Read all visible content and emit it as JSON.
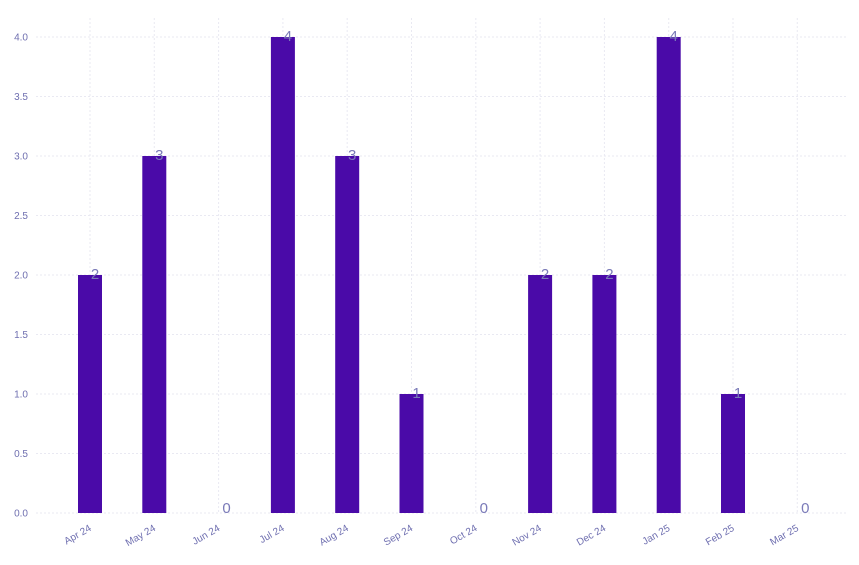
{
  "chart_data": {
    "type": "bar",
    "categories": [
      "Apr 24",
      "May 24",
      "Jun 24",
      "Jul 24",
      "Aug 24",
      "Sep 24",
      "Oct 24",
      "Nov 24",
      "Dec 24",
      "Jan 25",
      "Feb 25",
      "Mar 25"
    ],
    "values": [
      2,
      3,
      0,
      4,
      3,
      1,
      0,
      2,
      2,
      4,
      1,
      0
    ],
    "title": "",
    "xlabel": "",
    "ylabel": "",
    "ylim": [
      0,
      4.0
    ],
    "y_ticks": [
      "0.0",
      "0.5",
      "1.0",
      "1.5",
      "2.0",
      "2.5",
      "3.0",
      "3.5",
      "4.0"
    ],
    "grid": true,
    "data_labels": true,
    "colors": {
      "bar": "#4a0aa8",
      "data_label": "#7a7ab8",
      "tick_label": "#6f6fb0",
      "grid": "#e9e9f2"
    }
  }
}
